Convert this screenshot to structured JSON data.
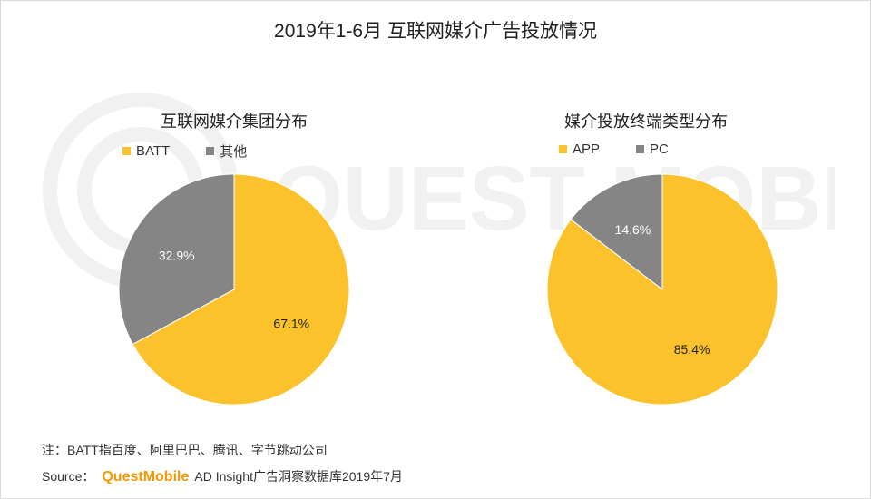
{
  "title": "2019年1-6月 互联网媒介广告投放情况",
  "watermark_text": "QUEST MOBILE",
  "colors": {
    "yellow": "#fbc22b",
    "gray": "#858585"
  },
  "chart_data": [
    {
      "type": "pie",
      "title": "互联网媒介集团分布",
      "legend_position": "top-left",
      "slices": [
        {
          "label": "BATT",
          "value": 67.1,
          "display": "67.1%",
          "color": "#fbc22b"
        },
        {
          "label": "其他",
          "value": 32.9,
          "display": "32.9%",
          "color": "#858585"
        }
      ]
    },
    {
      "type": "pie",
      "title": "媒介投放终端类型分布",
      "legend_position": "top-left",
      "slices": [
        {
          "label": "APP",
          "value": 85.4,
          "display": "85.4%",
          "color": "#fbc22b"
        },
        {
          "label": "PC",
          "value": 14.6,
          "display": "14.6%",
          "color": "#858585"
        }
      ]
    }
  ],
  "footer": {
    "note": "注：BATT指百度、阿里巴巴、腾讯、字节跳动公司",
    "source_prefix": "Source：",
    "source_brand": "QuestMobile",
    "source_suffix": "AD Insight广告洞察数据库2019年7月"
  }
}
